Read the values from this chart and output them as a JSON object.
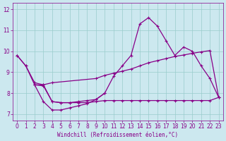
{
  "xlabel": "Windchill (Refroidissement éolien,°C)",
  "bg_color": "#cce8ef",
  "line_color": "#880088",
  "grid_color": "#99cccc",
  "xlim": [
    -0.5,
    23.5
  ],
  "ylim": [
    6.7,
    12.3
  ],
  "x_ticks": [
    0,
    1,
    2,
    3,
    4,
    5,
    6,
    7,
    8,
    9,
    10,
    11,
    12,
    13,
    14,
    15,
    16,
    17,
    18,
    19,
    20,
    21,
    22,
    23
  ],
  "y_ticks": [
    7,
    8,
    9,
    10,
    11,
    12
  ],
  "curve1_x": [
    0,
    1,
    2,
    3,
    4,
    5,
    6,
    7,
    8,
    9,
    10,
    11,
    12,
    13,
    14,
    15,
    16,
    17,
    18,
    19,
    20,
    21,
    22,
    23
  ],
  "curve1_y": [
    9.8,
    9.3,
    8.4,
    7.6,
    7.2,
    7.2,
    7.3,
    7.4,
    7.5,
    7.7,
    8.0,
    8.8,
    9.3,
    9.8,
    11.3,
    11.6,
    11.2,
    10.5,
    9.8,
    10.2,
    10.0,
    9.3,
    8.7,
    7.8
  ],
  "curve2_x": [
    0,
    1,
    2,
    3,
    4,
    9,
    10,
    11,
    12,
    13,
    14,
    15,
    16,
    17,
    18,
    19,
    20,
    21,
    22,
    23
  ],
  "curve2_y": [
    9.8,
    9.3,
    8.5,
    8.4,
    8.5,
    8.7,
    8.85,
    8.95,
    9.05,
    9.15,
    9.3,
    9.45,
    9.55,
    9.65,
    9.75,
    9.82,
    9.9,
    9.97,
    10.03,
    7.8
  ],
  "curve3_x": [
    2,
    3,
    4,
    5,
    6,
    7,
    8,
    9,
    10,
    11,
    12,
    13,
    14,
    15,
    16,
    17,
    18,
    19,
    20,
    21,
    22,
    23
  ],
  "curve3_y": [
    8.4,
    8.35,
    7.6,
    7.55,
    7.55,
    7.55,
    7.55,
    7.6,
    7.65,
    7.65,
    7.65,
    7.65,
    7.65,
    7.65,
    7.65,
    7.65,
    7.65,
    7.65,
    7.65,
    7.65,
    7.65,
    7.8
  ],
  "curve4_x": [
    2,
    3,
    4,
    5,
    6,
    7,
    8,
    9,
    10
  ],
  "curve4_y": [
    8.4,
    8.4,
    7.6,
    7.55,
    7.55,
    7.6,
    7.65,
    7.7,
    8.0
  ]
}
